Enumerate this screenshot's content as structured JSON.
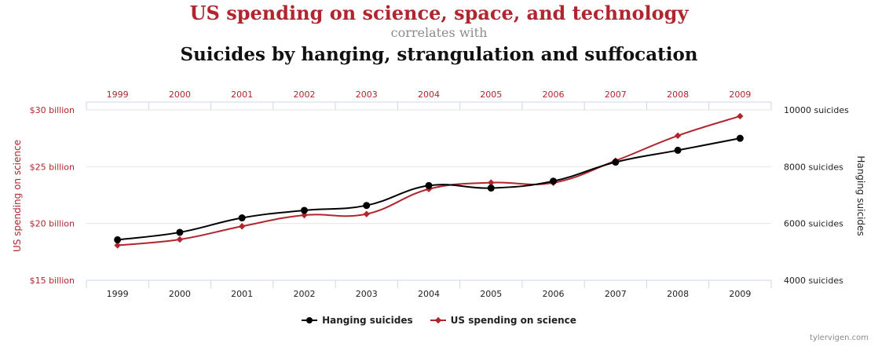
{
  "header": {
    "title": "US spending on science, space, and technology",
    "subtitle": "correlates with",
    "title2": "Suicides by hanging, strangulation and suffocation"
  },
  "credit": "tylervigen.com",
  "chart_data": {
    "type": "line",
    "categories": [
      "1999",
      "2000",
      "2001",
      "2002",
      "2003",
      "2004",
      "2005",
      "2006",
      "2007",
      "2008",
      "2009"
    ],
    "left_axis": {
      "label": "US spending on science",
      "ticks": [
        "$15 billion",
        "$20 billion",
        "$25 billion",
        "$30 billion"
      ],
      "ylim": [
        15,
        30
      ],
      "tick_values": [
        15,
        20,
        25,
        30
      ],
      "color": "#b0252e"
    },
    "right_axis": {
      "label": "Hanging suicides",
      "ticks": [
        "4000 suicides",
        "6000 suicides",
        "8000 suicides",
        "10000 suicides"
      ],
      "ylim": [
        4000,
        10000
      ],
      "tick_values": [
        4000,
        6000,
        8000,
        10000
      ],
      "color": "#111111"
    },
    "series": [
      {
        "name": "Hanging suicides",
        "axis": "right",
        "color": "#000000",
        "marker": "circle",
        "values": [
          5427,
          5688,
          6198,
          6462,
          6635,
          7336,
          7248,
          7491,
          8161,
          8578,
          9000
        ]
      },
      {
        "name": "US spending on science",
        "axis": "left",
        "color": "#b0252e",
        "marker": "diamond",
        "values": [
          18.079,
          18.594,
          19.753,
          20.734,
          20.831,
          23.029,
          23.597,
          23.584,
          25.525,
          27.731,
          29.449
        ]
      }
    ],
    "grid": true,
    "legend_position": "bottom"
  }
}
